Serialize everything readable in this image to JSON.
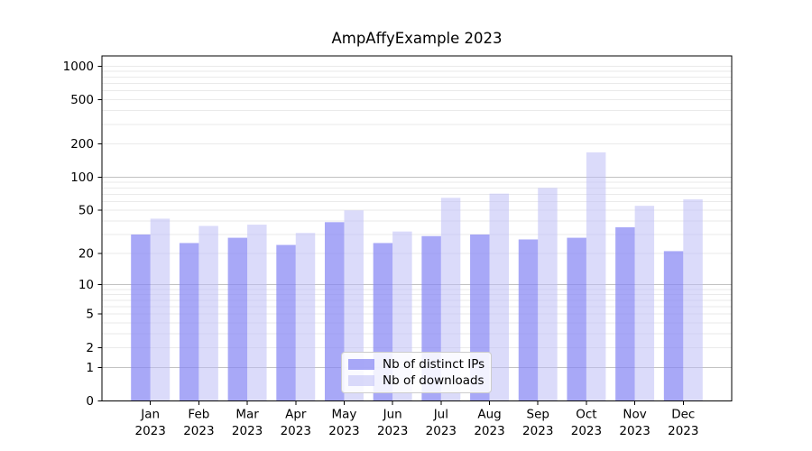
{
  "chart_data": {
    "type": "bar",
    "title": "AmpAffyExample 2023",
    "categories": [
      "Jan 2023",
      "Feb 2023",
      "Mar 2023",
      "Apr 2023",
      "May 2023",
      "Jun 2023",
      "Jul 2023",
      "Aug 2023",
      "Sep 2023",
      "Oct 2023",
      "Nov 2023",
      "Dec 2023"
    ],
    "series": [
      {
        "name": "Nb of distinct IPs",
        "color": "rgba(134,134,244,0.72)",
        "values": [
          30,
          25,
          28,
          24,
          39,
          25,
          29,
          30,
          27,
          28,
          35,
          21
        ]
      },
      {
        "name": "Nb of downloads",
        "color": "rgba(190,190,245,0.55)",
        "values": [
          42,
          36,
          37,
          31,
          50,
          32,
          65,
          71,
          80,
          168,
          55,
          63
        ]
      }
    ],
    "xlabel": "",
    "ylabel": "",
    "y_axis": {
      "scale": "log1p",
      "tick_values": [
        0,
        1,
        2,
        5,
        10,
        20,
        50,
        100,
        200,
        500,
        1000
      ],
      "tick_labels": [
        "0",
        "1",
        "2",
        "5",
        "10",
        "20",
        "50",
        "100",
        "200",
        "500",
        "1000"
      ],
      "major_gridline_values": [
        1,
        10,
        100
      ],
      "top_value": 1234
    },
    "grid": true,
    "legend_position": "lower center",
    "colors": {
      "major_gridline": "#c2c2c2",
      "minor_gridline": "#eaeaea",
      "axis_spine": "#000000",
      "legend_border": "#cccccc"
    }
  }
}
